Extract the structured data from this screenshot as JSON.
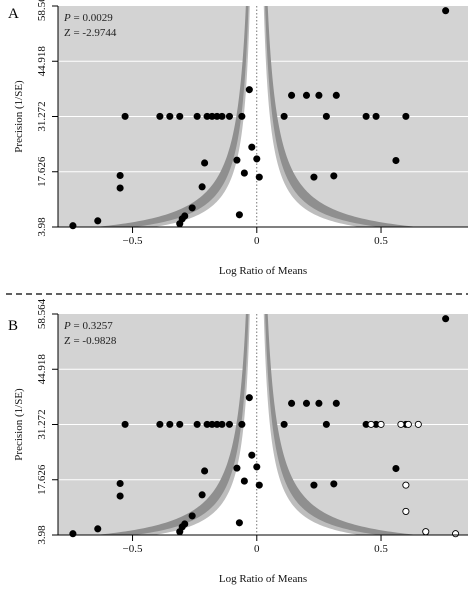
{
  "chart_data": [
    {
      "type": "scatter",
      "panel_label": "A",
      "title": "",
      "xlabel": "Log Ratio of Means",
      "ylabel": "Precision (1/SE)",
      "xlim": [
        -0.8,
        0.85
      ],
      "ylim": [
        3.98,
        58.564
      ],
      "x_ticks": [
        -0.5,
        0,
        0.5
      ],
      "x_tick_labels": [
        "−0.5",
        "0",
        "0.5"
      ],
      "y_ticks": [
        3.98,
        17.626,
        31.272,
        44.918,
        58.564
      ],
      "y_tick_labels": [
        "3.98",
        "17.626",
        "31.272",
        "44.918",
        "58.564"
      ],
      "grid": "horizontal",
      "background": "#d3d3d3",
      "funnel": true,
      "stats": {
        "p_label": "P",
        "p_value": " = 0.0029",
        "z_text": "Z = -2.9744"
      },
      "series": [
        {
          "filled": true,
          "points": [
            [
              -0.74,
              4.3
            ],
            [
              -0.64,
              5.5
            ],
            [
              -0.55,
              13.6
            ],
            [
              -0.55,
              16.7
            ],
            [
              -0.53,
              31.3
            ],
            [
              -0.39,
              31.3
            ],
            [
              -0.35,
              31.3
            ],
            [
              -0.31,
              31.3
            ],
            [
              -0.31,
              4.8
            ],
            [
              -0.3,
              6.0
            ],
            [
              -0.29,
              6.7
            ],
            [
              -0.26,
              8.7
            ],
            [
              -0.24,
              31.3
            ],
            [
              -0.22,
              13.9
            ],
            [
              -0.21,
              19.8
            ],
            [
              -0.2,
              31.3
            ],
            [
              -0.18,
              31.3
            ],
            [
              -0.16,
              31.3
            ],
            [
              -0.14,
              31.3
            ],
            [
              -0.11,
              31.3
            ],
            [
              -0.08,
              20.5
            ],
            [
              -0.07,
              7.0
            ],
            [
              -0.06,
              31.3
            ],
            [
              -0.05,
              17.3
            ],
            [
              -0.03,
              37.9
            ],
            [
              -0.02,
              23.7
            ],
            [
              0.0,
              20.8
            ],
            [
              0.01,
              16.3
            ],
            [
              0.11,
              31.3
            ],
            [
              0.14,
              36.5
            ],
            [
              0.2,
              36.5
            ],
            [
              0.23,
              16.3
            ],
            [
              0.25,
              36.5
            ],
            [
              0.28,
              31.3
            ],
            [
              0.32,
              36.5
            ],
            [
              0.31,
              16.6
            ],
            [
              0.44,
              31.3
            ],
            [
              0.48,
              31.3
            ],
            [
              0.56,
              20.4
            ],
            [
              0.6,
              31.3
            ],
            [
              0.76,
              57.4
            ]
          ]
        }
      ]
    },
    {
      "type": "scatter",
      "panel_label": "B",
      "title": "",
      "xlabel": "Log Ratio of Means",
      "ylabel": "Precision (1/SE)",
      "xlim": [
        -0.8,
        0.85
      ],
      "ylim": [
        3.98,
        58.564
      ],
      "x_ticks": [
        -0.5,
        0,
        0.5
      ],
      "x_tick_labels": [
        "−0.5",
        "0",
        "0.5"
      ],
      "y_ticks": [
        3.98,
        17.626,
        31.272,
        44.918,
        58.564
      ],
      "y_tick_labels": [
        "3.98",
        "17.626",
        "31.272",
        "44.918",
        "58.564"
      ],
      "grid": "horizontal",
      "background": "#d3d3d3",
      "funnel": true,
      "stats": {
        "p_label": "P",
        "p_value": " = 0.3257",
        "z_text": "Z = -0.9828"
      },
      "series": [
        {
          "filled": true,
          "points": [
            [
              -0.74,
              4.3
            ],
            [
              -0.64,
              5.5
            ],
            [
              -0.55,
              13.6
            ],
            [
              -0.55,
              16.7
            ],
            [
              -0.53,
              31.3
            ],
            [
              -0.39,
              31.3
            ],
            [
              -0.35,
              31.3
            ],
            [
              -0.31,
              31.3
            ],
            [
              -0.31,
              4.8
            ],
            [
              -0.3,
              6.0
            ],
            [
              -0.29,
              6.7
            ],
            [
              -0.26,
              8.7
            ],
            [
              -0.24,
              31.3
            ],
            [
              -0.22,
              13.9
            ],
            [
              -0.21,
              19.8
            ],
            [
              -0.2,
              31.3
            ],
            [
              -0.18,
              31.3
            ],
            [
              -0.16,
              31.3
            ],
            [
              -0.14,
              31.3
            ],
            [
              -0.11,
              31.3
            ],
            [
              -0.08,
              20.5
            ],
            [
              -0.07,
              7.0
            ],
            [
              -0.06,
              31.3
            ],
            [
              -0.05,
              17.3
            ],
            [
              -0.03,
              37.9
            ],
            [
              -0.02,
              23.7
            ],
            [
              0.0,
              20.8
            ],
            [
              0.01,
              16.3
            ],
            [
              0.11,
              31.3
            ],
            [
              0.14,
              36.5
            ],
            [
              0.2,
              36.5
            ],
            [
              0.23,
              16.3
            ],
            [
              0.25,
              36.5
            ],
            [
              0.28,
              31.3
            ],
            [
              0.32,
              36.5
            ],
            [
              0.31,
              16.6
            ],
            [
              0.44,
              31.3
            ],
            [
              0.48,
              31.3
            ],
            [
              0.56,
              20.4
            ],
            [
              0.6,
              31.3
            ],
            [
              0.76,
              57.4
            ]
          ]
        },
        {
          "filled": false,
          "points": [
            [
              0.46,
              31.3
            ],
            [
              0.5,
              31.3
            ],
            [
              0.58,
              31.3
            ],
            [
              0.61,
              31.3
            ],
            [
              0.65,
              31.3
            ],
            [
              0.6,
              16.3
            ],
            [
              0.6,
              9.8
            ],
            [
              0.68,
              4.8
            ],
            [
              0.8,
              4.3
            ]
          ]
        }
      ]
    }
  ]
}
